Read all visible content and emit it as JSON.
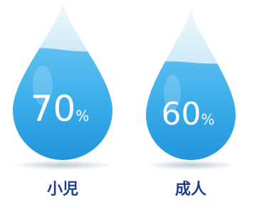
{
  "items": [
    {
      "value": "70",
      "unit": "%",
      "label": "小児"
    },
    {
      "value": "60",
      "unit": "%",
      "label": "成人"
    }
  ]
}
